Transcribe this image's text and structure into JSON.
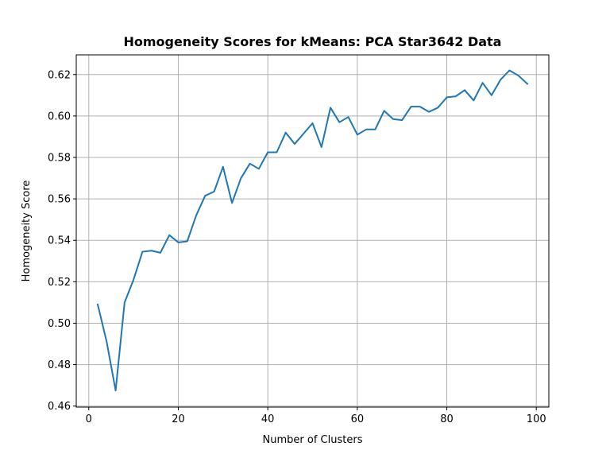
{
  "chart_data": {
    "type": "line",
    "title": "Homogeneity Scores for kMeans: PCA Star3642 Data",
    "xlabel": "Number of Clusters",
    "ylabel": "Homogeneity Score",
    "xlim": [
      -2.8,
      102.8
    ],
    "ylim": [
      0.4595,
      0.6295
    ],
    "xticks": [
      0,
      20,
      40,
      60,
      80,
      100
    ],
    "xtick_labels": [
      "0",
      "20",
      "40",
      "60",
      "80",
      "100"
    ],
    "yticks": [
      0.46,
      0.48,
      0.5,
      0.52,
      0.54,
      0.56,
      0.58,
      0.6,
      0.62
    ],
    "ytick_labels": [
      "0.46",
      "0.48",
      "0.50",
      "0.52",
      "0.54",
      "0.56",
      "0.58",
      "0.60",
      "0.62"
    ],
    "grid": true,
    "series": [
      {
        "color": "#1f77b4",
        "x": [
          2,
          4,
          6,
          8,
          10,
          12,
          14,
          16,
          18,
          20,
          22,
          24,
          26,
          28,
          30,
          32,
          34,
          36,
          38,
          40,
          42,
          44,
          46,
          48,
          50,
          52,
          54,
          56,
          58,
          60,
          62,
          64,
          66,
          68,
          70,
          72,
          74,
          76,
          78,
          80,
          82,
          84,
          86,
          88,
          90,
          92,
          94,
          96,
          98
        ],
        "values": [
          0.509,
          0.491,
          0.4675,
          0.51,
          0.521,
          0.5345,
          0.535,
          0.534,
          0.5425,
          0.539,
          0.5395,
          0.552,
          0.5615,
          0.5635,
          0.5755,
          0.558,
          0.57,
          0.577,
          0.5745,
          0.5825,
          0.5825,
          0.592,
          0.5865,
          0.5915,
          0.5965,
          0.585,
          0.604,
          0.597,
          0.5995,
          0.591,
          0.5935,
          0.5935,
          0.6025,
          0.5985,
          0.598,
          0.6045,
          0.6045,
          0.602,
          0.604,
          0.609,
          0.6095,
          0.6125,
          0.6075,
          0.616,
          0.61,
          0.6175,
          0.622,
          0.6195,
          0.6155
        ]
      }
    ]
  }
}
